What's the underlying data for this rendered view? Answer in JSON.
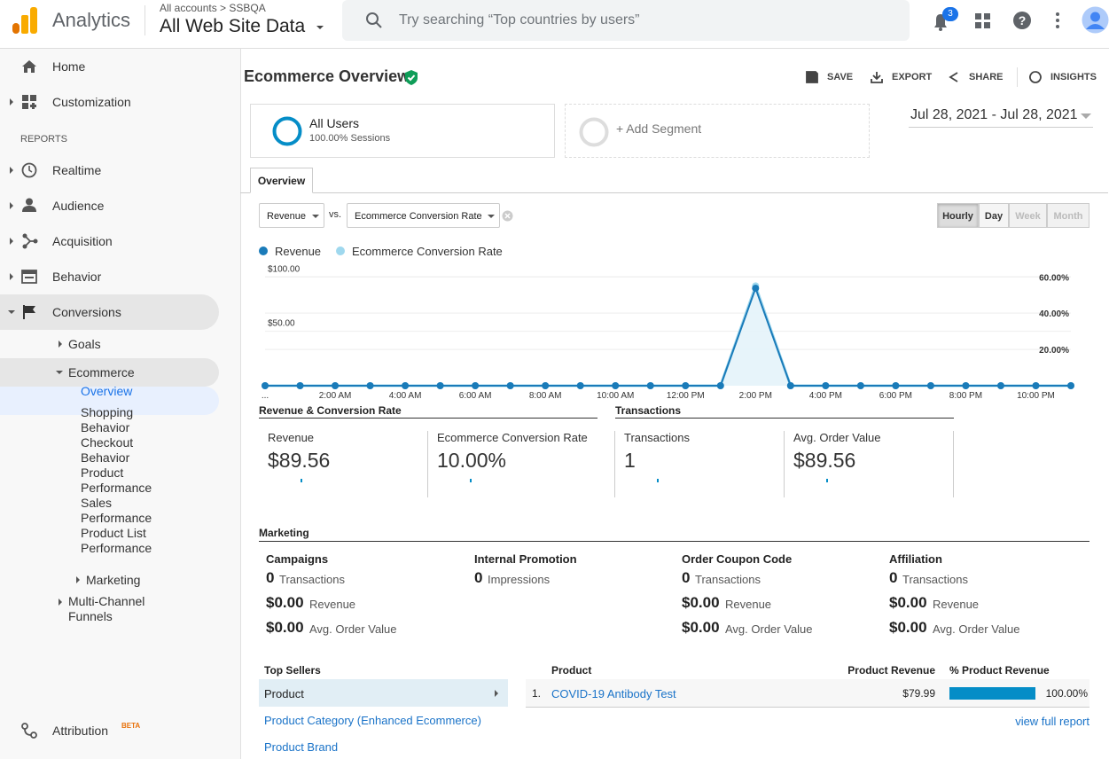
{
  "header": {
    "product": "Analytics",
    "breadcrumb": "All accounts > SSBQA",
    "property": "All Web Site Data",
    "search_placeholder": "Try searching “Top countries by users”",
    "notification_count": "3"
  },
  "sidebar": {
    "home": "Home",
    "customization": "Customization",
    "reports_label": "REPORTS",
    "realtime": "Realtime",
    "audience": "Audience",
    "acquisition": "Acquisition",
    "behavior": "Behavior",
    "conversions": "Conversions",
    "goals": "Goals",
    "ecommerce": "Ecommerce",
    "ecommerce_items": [
      "Overview",
      "Shopping Behavior",
      "Checkout Behavior",
      "Product Performance",
      "Sales Performance",
      "Product List Performance"
    ],
    "marketing": "Marketing",
    "multi_channel": "Multi-Channel Funnels",
    "attribution": "Attribution",
    "attribution_badge": "BETA"
  },
  "page": {
    "title": "Ecommerce Overview",
    "actions": [
      "SAVE",
      "EXPORT",
      "SHARE",
      "INSIGHTS"
    ],
    "segment_name": "All Users",
    "segment_detail": "100.00% Sessions",
    "add_segment": "+ Add Segment",
    "date_range": "Jul 28, 2021 - Jul 28, 2021",
    "tab": "Overview",
    "metric_1": "Revenue",
    "vs": "vs.",
    "metric_2": "Ecommerce Conversion Rate",
    "granularity": [
      "Hourly",
      "Day",
      "Week",
      "Month"
    ]
  },
  "chart_data": {
    "type": "line",
    "categories": [
      "...",
      null,
      "2:00 AM",
      null,
      "4:00 AM",
      null,
      "6:00 AM",
      null,
      "8:00 AM",
      null,
      "10:00 AM",
      null,
      "12:00 PM",
      null,
      "2:00 PM",
      null,
      "4:00 PM",
      null,
      "6:00 PM",
      null,
      "8:00 PM",
      null,
      "10:00 PM",
      null
    ],
    "series": [
      {
        "name": "Revenue",
        "color": "#1a7bb9",
        "values": [
          0,
          0,
          0,
          0,
          0,
          0,
          0,
          0,
          0,
          0,
          0,
          0,
          0,
          0,
          89.56,
          0,
          0,
          0,
          0,
          0,
          0,
          0,
          0,
          0
        ]
      },
      {
        "name": "Ecommerce Conversion Rate",
        "color": "#9fd8ee",
        "axis": "y2",
        "values": [
          0,
          0,
          0,
          0,
          0,
          0,
          0,
          0,
          0,
          0,
          0,
          0,
          0,
          0,
          55,
          0,
          0,
          0,
          0,
          0,
          0,
          0,
          0,
          0
        ]
      }
    ],
    "ylim": [
      0,
      110
    ],
    "yticks": [
      {
        "value": 50,
        "label": "$50.00"
      },
      {
        "value": 100,
        "label": "$100.00"
      }
    ],
    "y2lim": [
      0,
      66
    ],
    "y2ticks": [
      {
        "value": 20,
        "label": "20.00%"
      },
      {
        "value": 40,
        "label": "40.00%"
      },
      {
        "value": 60,
        "label": "60.00%"
      }
    ],
    "grid": true
  },
  "summary": {
    "group_1": "Revenue & Conversion Rate",
    "group_2": "Transactions",
    "metrics": [
      {
        "label": "Revenue",
        "value": "$89.56"
      },
      {
        "label": "Ecommerce Conversion Rate",
        "value": "10.00%"
      },
      {
        "label": "Transactions",
        "value": "1"
      },
      {
        "label": "Avg. Order Value",
        "value": "$89.56"
      }
    ]
  },
  "marketing": {
    "title": "Marketing",
    "columns": [
      {
        "title": "Campaigns",
        "rows": [
          [
            "0",
            "Transactions"
          ],
          [
            "$0.00",
            "Revenue"
          ],
          [
            "$0.00",
            "Avg. Order Value"
          ]
        ]
      },
      {
        "title": "Internal Promotion",
        "rows": [
          [
            "0",
            "Impressions"
          ]
        ]
      },
      {
        "title": "Order Coupon Code",
        "rows": [
          [
            "0",
            "Transactions"
          ],
          [
            "$0.00",
            "Revenue"
          ],
          [
            "$0.00",
            "Avg. Order Value"
          ]
        ]
      },
      {
        "title": "Affiliation",
        "rows": [
          [
            "0",
            "Transactions"
          ],
          [
            "$0.00",
            "Revenue"
          ],
          [
            "$0.00",
            "Avg. Order Value"
          ]
        ]
      }
    ]
  },
  "top_sellers": {
    "title": "Top Sellers",
    "options": [
      "Product",
      "Product Category (Enhanced Ecommerce)",
      "Product Brand"
    ],
    "headers": [
      "Product",
      "Product Revenue",
      "% Product Revenue"
    ],
    "rows": [
      {
        "rank": "1.",
        "product": "COVID-19 Antibody Test",
        "revenue": "$79.99",
        "share": 100,
        "share_label": "100.00%"
      }
    ],
    "view_full": "view full report"
  }
}
